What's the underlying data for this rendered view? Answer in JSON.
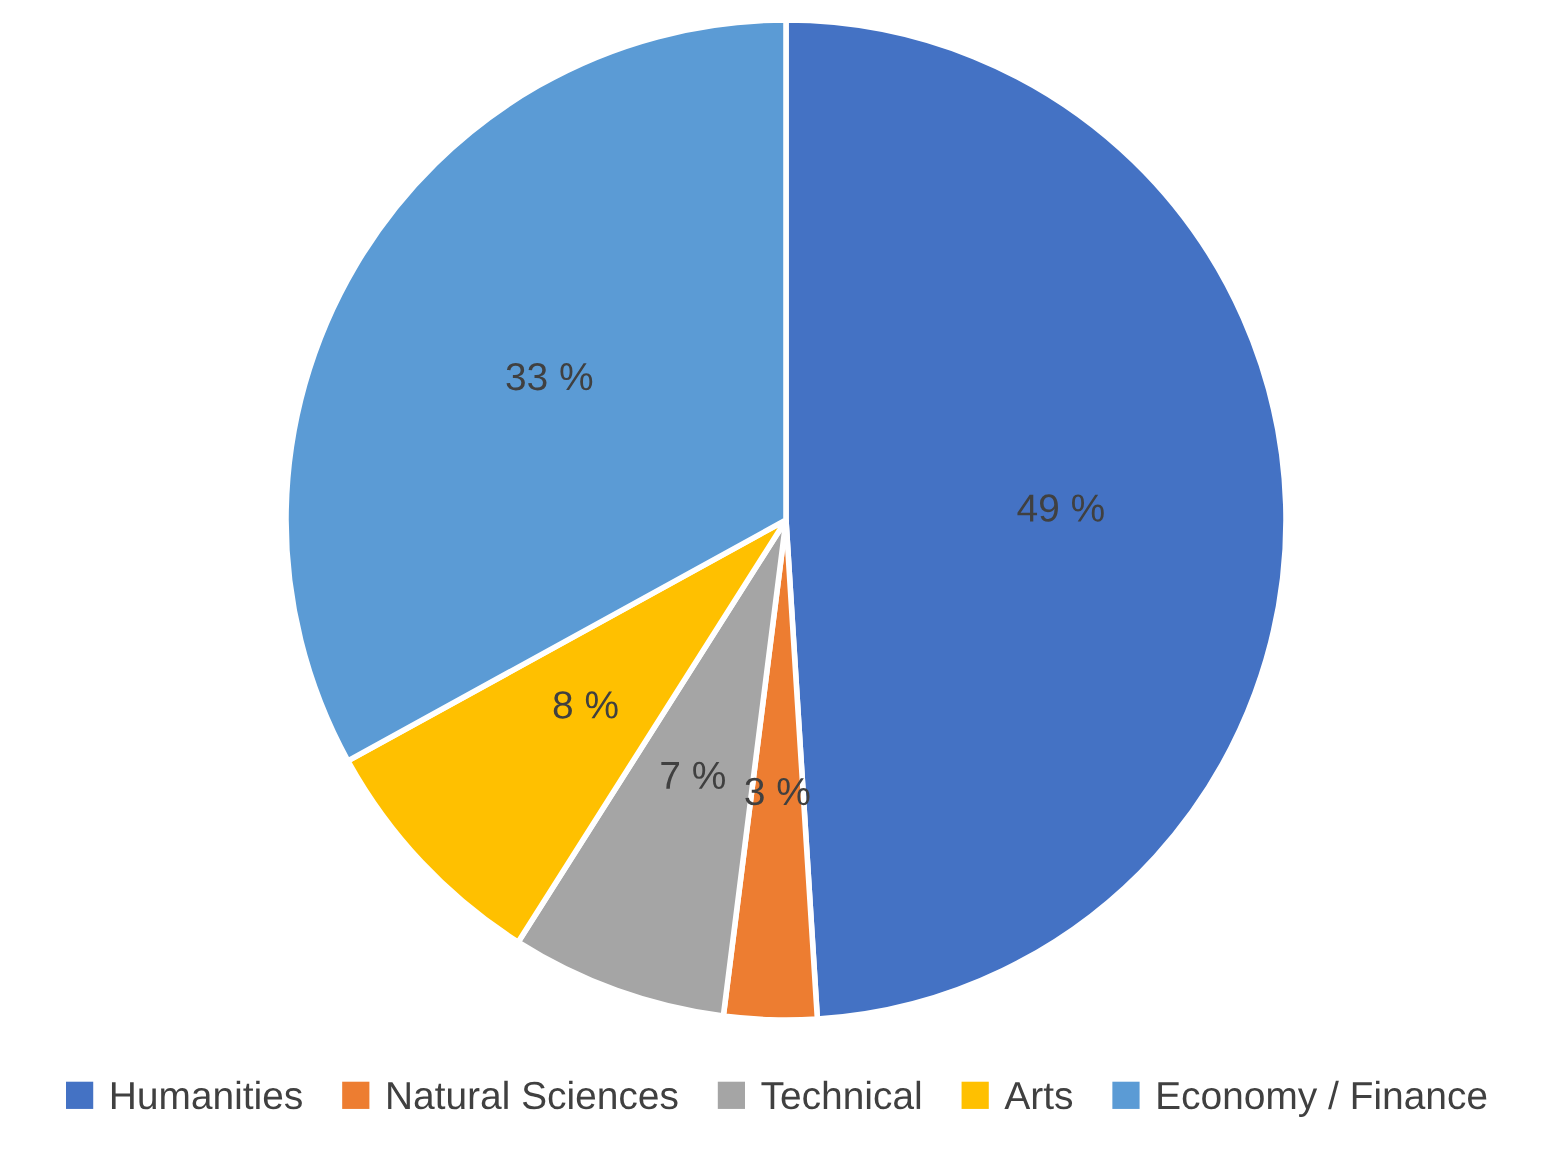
{
  "chart_data": {
    "type": "pie",
    "categories": [
      "Humanities",
      "Natural Sciences",
      "Technical",
      "Arts",
      "Economy / Finance"
    ],
    "values": [
      49,
      3,
      7,
      8,
      33
    ],
    "colors": [
      "#4472c4",
      "#ed7d31",
      "#a5a5a5",
      "#ffc000",
      "#5b9bd5"
    ],
    "value_labels": [
      "49 %",
      "3 %",
      "7 %",
      "8 %",
      "33 %"
    ],
    "legend": "bottom"
  }
}
